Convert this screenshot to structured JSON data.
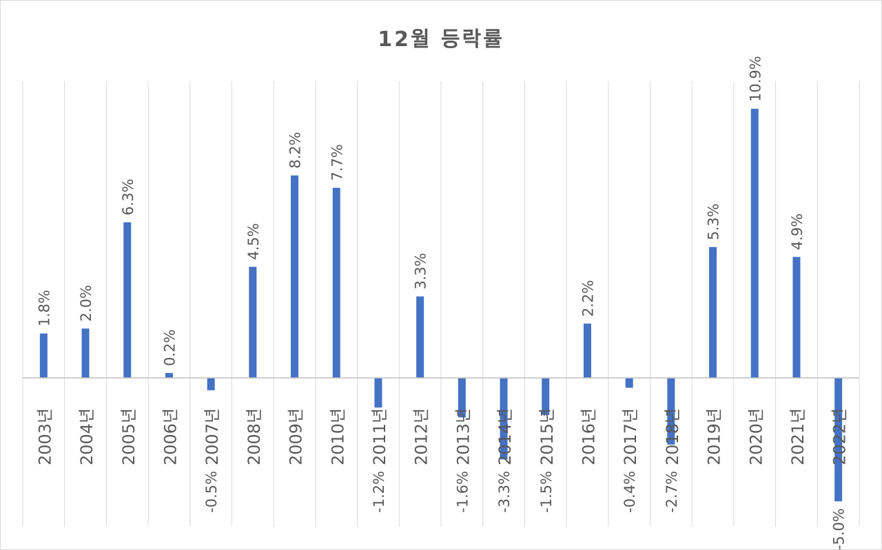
{
  "chart_data": {
    "type": "bar",
    "title": "12월 등락률",
    "categories": [
      "2003년",
      "2004년",
      "2005년",
      "2006년",
      "2007년",
      "2008년",
      "2009년",
      "2010년",
      "2011년",
      "2012년",
      "2013년",
      "2014년",
      "2015년",
      "2016년",
      "2017년",
      "2018년",
      "2019년",
      "2020년",
      "2021년",
      "2022년"
    ],
    "series": [
      {
        "values": [
          1.8,
          2.0,
          6.3,
          0.2,
          -0.5,
          4.5,
          8.2,
          7.7,
          -1.2,
          3.3,
          -1.6,
          -3.3,
          -1.5,
          2.2,
          -0.4,
          -2.7,
          5.3,
          10.9,
          4.9,
          -5.0
        ],
        "labels": [
          "1.8%",
          "2.0%",
          "6.3%",
          "0.2%",
          "-0.5%",
          "4.5%",
          "8.2%",
          "7.7%",
          "-1.2%",
          "3.3%",
          "-1.6%",
          "-3.3%",
          "-1.5%",
          "2.2%",
          "-0.4%",
          "-2.7%",
          "5.3%",
          "10.9%",
          "4.9%",
          "-5.0%"
        ]
      }
    ],
    "xlabel": "",
    "ylabel": "",
    "ylim": [
      -6.0,
      12.0
    ],
    "grid": "vertical",
    "legend": "none",
    "bar_color": "#4472c4",
    "axis_color": "#bfbfbf",
    "text_color": "#595959"
  }
}
